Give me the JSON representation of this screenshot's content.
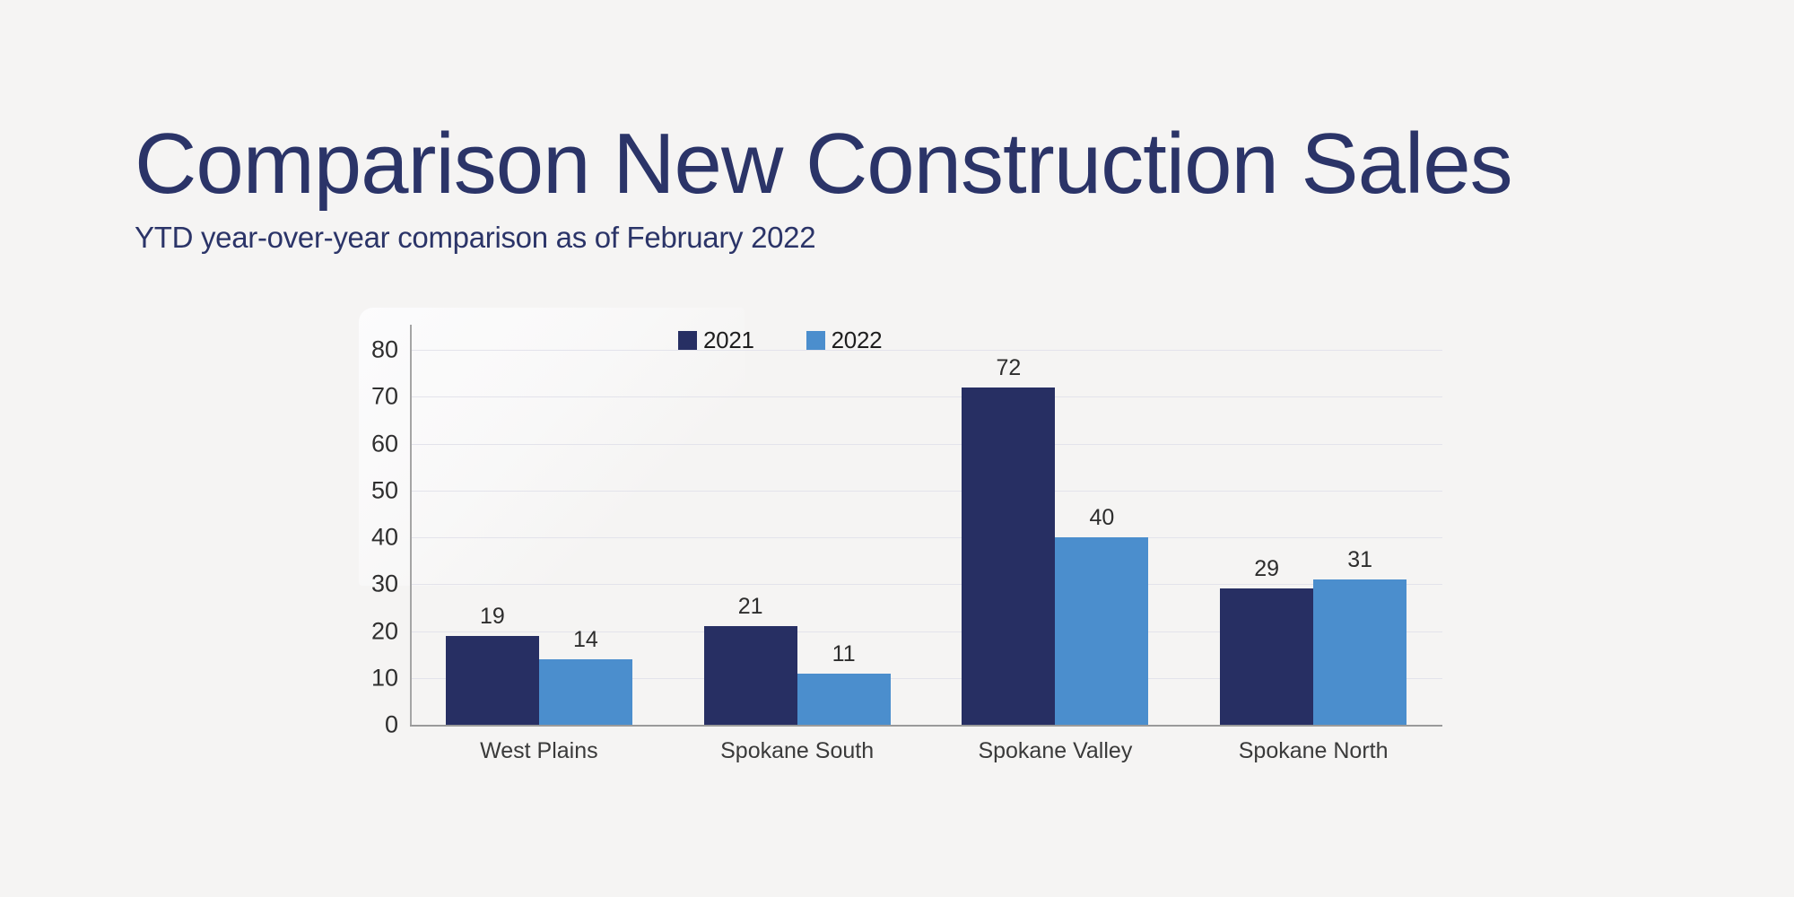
{
  "page": {
    "background_color": "#f5f4f3"
  },
  "header": {
    "title": "Comparison New Construction Sales",
    "subtitle": "YTD year-over-year comparison as of February 2022",
    "text_color": "#2b3468"
  },
  "chart_data": {
    "type": "bar",
    "title": "",
    "categories": [
      "West Plains",
      "Spokane South",
      "Spokane Valley",
      "Spokane North"
    ],
    "series": [
      {
        "name": "2021",
        "color": "#272f63",
        "values": [
          19,
          21,
          72,
          29
        ]
      },
      {
        "name": "2022",
        "color": "#4b8ecd",
        "values": [
          14,
          11,
          40,
          31
        ]
      }
    ],
    "ylim": [
      0,
      80
    ],
    "yticks": [
      0,
      10,
      20,
      30,
      40,
      50,
      60,
      70,
      80
    ],
    "grid": true,
    "value_labels": true,
    "legend_position": "top-center",
    "colors": {
      "gridline": "#e3e3eb",
      "axis": "#9a9a9a",
      "tick_label": "#2f2f2f",
      "value_label": "#2d2d2d",
      "category_label": "#3a3a3a",
      "legend_label": "#1e1e1e"
    }
  }
}
